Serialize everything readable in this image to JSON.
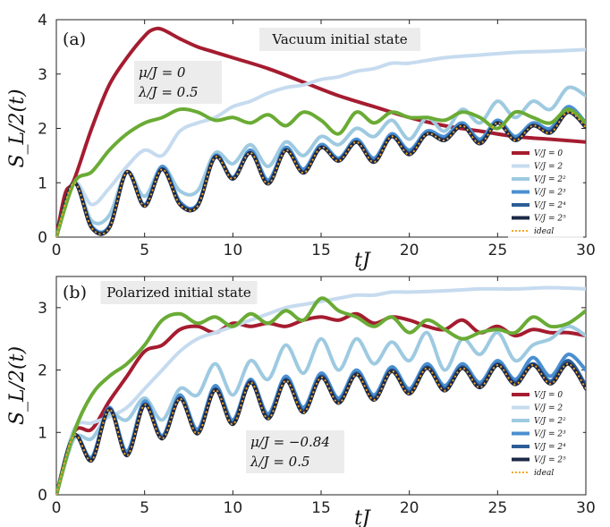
{
  "chart_data": [
    {
      "type": "line",
      "panel_label": "(a)",
      "title": "Vacuum initial state",
      "annotation": [
        "μ/J = 0",
        "λ/J = 0.5"
      ],
      "xlabel": "tJ",
      "ylabel": "S_L/2(t)",
      "xlim": [
        0,
        30
      ],
      "ylim": [
        0,
        4
      ],
      "xticks": [
        "0",
        "5",
        "10",
        "15",
        "20",
        "25",
        "30"
      ],
      "yticks": [
        "0",
        "1",
        "2",
        "3",
        "4"
      ],
      "legend_position": "bottom-right",
      "legend": [
        "V/J = 0",
        "V/J = 2",
        "V/J = 2²",
        "V/J = 2³",
        "V/J = 2⁴",
        "V/J = 2⁵",
        "ideal"
      ],
      "series": [
        {
          "name": "V/J = 0",
          "color": "#a51c30",
          "x": [
            0,
            0.5,
            1,
            2,
            3,
            4,
            5,
            5.5,
            6,
            7,
            8,
            9,
            10,
            12,
            14,
            16,
            18,
            20,
            22,
            24,
            26,
            28,
            30
          ],
          "y": [
            0,
            0.8,
            1.05,
            2.0,
            2.8,
            3.3,
            3.7,
            3.82,
            3.82,
            3.65,
            3.5,
            3.4,
            3.3,
            3.1,
            2.85,
            2.6,
            2.4,
            2.2,
            2.05,
            1.95,
            1.85,
            1.8,
            1.75
          ]
        },
        {
          "name": "V/J = 2",
          "color": "#c6dbef",
          "x": [
            0,
            1,
            2,
            3,
            4,
            5,
            6,
            7,
            8,
            9,
            10,
            11,
            12,
            13,
            14,
            15,
            16,
            17,
            18,
            19,
            20,
            22,
            24,
            26,
            28,
            30
          ],
          "y": [
            0,
            1.0,
            0.6,
            0.9,
            1.3,
            1.6,
            1.5,
            1.95,
            2.1,
            2.2,
            2.4,
            2.5,
            2.65,
            2.75,
            2.8,
            2.9,
            2.95,
            3.05,
            3.1,
            3.2,
            3.2,
            3.3,
            3.35,
            3.4,
            3.42,
            3.45
          ]
        },
        {
          "name": "V/J = 2²",
          "color": "#9ecae1",
          "x": [
            0,
            1,
            2,
            3,
            4,
            5,
            6,
            7,
            8,
            9,
            10,
            11,
            12,
            13,
            14,
            15,
            16,
            17,
            18,
            19,
            20,
            21,
            22,
            23,
            24,
            25,
            26,
            27,
            28,
            29,
            30
          ],
          "y": [
            0,
            1.0,
            0.3,
            0.4,
            1.2,
            0.75,
            1.3,
            0.85,
            0.85,
            1.55,
            1.35,
            1.7,
            1.3,
            1.75,
            1.5,
            1.85,
            1.7,
            2.0,
            1.85,
            2.15,
            1.8,
            2.2,
            1.95,
            2.35,
            2.1,
            2.5,
            2.2,
            2.5,
            2.35,
            2.75,
            2.6
          ]
        },
        {
          "name": "V/J = 2³",
          "color": "#4a8fd1",
          "x": [
            0,
            1,
            2,
            3,
            4,
            5,
            6,
            7,
            8,
            9,
            10,
            11,
            12,
            13,
            14,
            15,
            16,
            17,
            18,
            19,
            20,
            21,
            22,
            23,
            24,
            25,
            26,
            27,
            28,
            29,
            30
          ],
          "y": [
            0,
            1.0,
            0.2,
            0.2,
            1.2,
            0.6,
            1.3,
            0.65,
            0.6,
            1.5,
            1.1,
            1.6,
            1.05,
            1.65,
            1.25,
            1.7,
            1.45,
            1.8,
            1.45,
            1.9,
            1.6,
            1.95,
            1.85,
            2.1,
            1.8,
            2.15,
            1.85,
            2.1,
            2.0,
            2.4,
            2.1
          ]
        },
        {
          "name": "V/J = 2⁴",
          "color": "#2c5d97",
          "x": [
            0,
            1,
            2,
            3,
            4,
            5,
            6,
            7,
            8,
            9,
            10,
            11,
            12,
            13,
            14,
            15,
            16,
            17,
            18,
            19,
            20,
            21,
            22,
            23,
            24,
            25,
            26,
            27,
            28,
            29,
            30
          ],
          "y": [
            0,
            1.0,
            0.18,
            0.18,
            1.2,
            0.58,
            1.25,
            0.62,
            0.58,
            1.48,
            1.08,
            1.55,
            1.0,
            1.6,
            1.2,
            1.65,
            1.42,
            1.75,
            1.4,
            1.85,
            1.55,
            1.9,
            1.8,
            2.05,
            1.75,
            2.1,
            1.8,
            2.05,
            1.95,
            2.3,
            2.05
          ]
        },
        {
          "name": "V/J = 2⁵",
          "color": "#1c2846",
          "x": [
            0,
            1,
            2,
            3,
            4,
            5,
            6,
            7,
            8,
            9,
            10,
            11,
            12,
            13,
            14,
            15,
            16,
            17,
            18,
            19,
            20,
            21,
            22,
            23,
            24,
            25,
            26,
            27,
            28,
            29,
            30
          ],
          "y": [
            0,
            1.0,
            0.17,
            0.17,
            1.2,
            0.57,
            1.25,
            0.6,
            0.57,
            1.47,
            1.07,
            1.55,
            0.98,
            1.6,
            1.18,
            1.65,
            1.4,
            1.75,
            1.38,
            1.85,
            1.52,
            1.9,
            1.78,
            2.05,
            1.72,
            2.1,
            1.78,
            2.05,
            1.92,
            2.3,
            2.02
          ]
        },
        {
          "name": "ideal",
          "color": "#f5a623",
          "dashed": true,
          "x": [
            0,
            1,
            2,
            3,
            4,
            5,
            6,
            7,
            8,
            9,
            10,
            11,
            12,
            13,
            14,
            15,
            16,
            17,
            18,
            19,
            20,
            21,
            22,
            23,
            24,
            25,
            26,
            27,
            28,
            29,
            30
          ],
          "y": [
            0,
            1.0,
            0.17,
            0.17,
            1.2,
            0.57,
            1.25,
            0.6,
            0.57,
            1.47,
            1.07,
            1.55,
            0.98,
            1.6,
            1.18,
            1.65,
            1.4,
            1.75,
            1.38,
            1.85,
            1.52,
            1.9,
            1.78,
            2.05,
            1.72,
            2.1,
            1.78,
            2.05,
            1.92,
            2.3,
            2.02
          ]
        },
        {
          "name": "",
          "color": "#6aab35",
          "x": [
            0,
            1,
            2,
            3,
            4,
            5,
            6,
            7,
            8,
            9,
            10,
            11,
            12,
            13,
            14,
            15,
            16,
            17,
            18,
            19,
            20,
            21,
            22,
            23,
            24,
            25,
            26,
            27,
            28,
            29,
            30
          ],
          "y": [
            0,
            1.0,
            1.2,
            1.6,
            1.9,
            2.1,
            2.2,
            2.35,
            2.3,
            2.15,
            2.2,
            2.1,
            2.25,
            2.05,
            2.3,
            2.15,
            1.9,
            2.3,
            2.1,
            2.3,
            2.2,
            2.2,
            2.15,
            2.3,
            2.2,
            2.0,
            2.3,
            2.2,
            2.1,
            2.35,
            2.1
          ]
        }
      ]
    },
    {
      "type": "line",
      "panel_label": "(b)",
      "title": "Polarized initial state",
      "annotation": [
        "μ/J = −0.84",
        "λ/J = 0.5"
      ],
      "xlabel": "tJ",
      "ylabel": "S_L/2(t)",
      "xlim": [
        0,
        30
      ],
      "ylim": [
        0,
        3.5
      ],
      "xticks": [
        "0",
        "5",
        "10",
        "15",
        "20",
        "25",
        "30"
      ],
      "yticks": [
        "0",
        "1",
        "2",
        "3"
      ],
      "legend_position": "bottom-right",
      "legend": [
        "V/J = 0",
        "V/J = 2",
        "V/J = 2²",
        "V/J = 2³",
        "V/J = 2⁴",
        "V/J = 2⁵",
        "ideal"
      ],
      "series": [
        {
          "name": "V/J = 0",
          "color": "#a51c30",
          "x": [
            0,
            1,
            2,
            3,
            4,
            5,
            6,
            7,
            8,
            9,
            10,
            11,
            12,
            13,
            14,
            15,
            16,
            17,
            18,
            19,
            20,
            21,
            22,
            23,
            24,
            25,
            26,
            27,
            28,
            29,
            30
          ],
          "y": [
            0,
            1.0,
            1.05,
            1.5,
            1.9,
            2.3,
            2.4,
            2.65,
            2.7,
            2.6,
            2.75,
            2.7,
            2.75,
            2.7,
            2.8,
            2.85,
            2.8,
            2.9,
            2.75,
            2.85,
            2.8,
            2.7,
            2.65,
            2.8,
            2.6,
            2.7,
            2.55,
            2.65,
            2.6,
            2.6,
            2.55
          ]
        },
        {
          "name": "V/J = 2",
          "color": "#c6dbef",
          "x": [
            0,
            1,
            2,
            3,
            4,
            5,
            6,
            7,
            8,
            9,
            10,
            11,
            12,
            13,
            14,
            15,
            16,
            17,
            18,
            19,
            20,
            22,
            24,
            26,
            28,
            30
          ],
          "y": [
            0,
            1.05,
            1.15,
            1.25,
            1.4,
            1.7,
            2.0,
            2.3,
            2.5,
            2.6,
            2.7,
            2.8,
            2.9,
            3.0,
            3.05,
            3.1,
            3.15,
            3.2,
            3.2,
            3.25,
            3.25,
            3.27,
            3.3,
            3.3,
            3.32,
            3.3
          ]
        },
        {
          "name": "V/J = 2²",
          "color": "#9ecae1",
          "x": [
            0,
            1,
            2,
            3,
            4,
            5,
            6,
            7,
            8,
            9,
            10,
            11,
            12,
            13,
            14,
            15,
            16,
            17,
            18,
            19,
            20,
            21,
            22,
            23,
            24,
            25,
            26,
            27,
            28,
            29,
            30
          ],
          "y": [
            0,
            0.9,
            0.9,
            1.3,
            1.2,
            1.55,
            1.2,
            1.7,
            1.6,
            2.1,
            1.6,
            2.15,
            1.85,
            2.4,
            1.95,
            2.5,
            2.0,
            2.5,
            2.1,
            2.45,
            2.15,
            2.6,
            2.0,
            2.5,
            2.25,
            2.6,
            2.15,
            2.4,
            2.5,
            2.7,
            2.55
          ]
        },
        {
          "name": "V/J = 2³",
          "color": "#4a8fd1",
          "x": [
            0,
            1,
            2,
            3,
            4,
            5,
            6,
            7,
            8,
            9,
            10,
            11,
            12,
            13,
            14,
            15,
            16,
            17,
            18,
            19,
            20,
            21,
            22,
            23,
            24,
            25,
            26,
            27,
            28,
            29,
            30
          ],
          "y": [
            0,
            0.95,
            0.6,
            1.4,
            0.7,
            1.5,
            0.95,
            1.6,
            1.05,
            1.75,
            1.2,
            1.85,
            1.3,
            1.9,
            1.4,
            1.95,
            1.55,
            2.0,
            1.6,
            2.05,
            1.7,
            2.1,
            1.75,
            2.1,
            1.8,
            2.15,
            1.85,
            2.2,
            1.9,
            2.25,
            2.0
          ]
        },
        {
          "name": "V/J = 2⁴",
          "color": "#2c5d97",
          "x": [
            0,
            1,
            2,
            3,
            4,
            5,
            6,
            7,
            8,
            9,
            10,
            11,
            12,
            13,
            14,
            15,
            16,
            17,
            18,
            19,
            20,
            21,
            22,
            23,
            24,
            25,
            26,
            27,
            28,
            29,
            30
          ],
          "y": [
            0,
            0.95,
            0.57,
            1.38,
            0.65,
            1.45,
            0.92,
            1.55,
            1.0,
            1.7,
            1.15,
            1.82,
            1.25,
            1.85,
            1.35,
            1.9,
            1.5,
            1.95,
            1.55,
            2.0,
            1.65,
            2.05,
            1.7,
            2.05,
            1.75,
            2.1,
            1.8,
            2.1,
            1.82,
            2.15,
            1.75
          ]
        },
        {
          "name": "V/J = 2⁵",
          "color": "#1c2846",
          "x": [
            0,
            1,
            2,
            3,
            4,
            5,
            6,
            7,
            8,
            9,
            10,
            11,
            12,
            13,
            14,
            15,
            16,
            17,
            18,
            19,
            20,
            21,
            22,
            23,
            24,
            25,
            26,
            27,
            28,
            29,
            30
          ],
          "y": [
            0,
            0.95,
            0.55,
            1.37,
            0.63,
            1.44,
            0.9,
            1.54,
            0.98,
            1.68,
            1.13,
            1.8,
            1.22,
            1.83,
            1.32,
            1.88,
            1.47,
            1.93,
            1.52,
            1.98,
            1.62,
            2.03,
            1.67,
            2.03,
            1.72,
            2.08,
            1.77,
            2.08,
            1.78,
            2.1,
            1.7
          ]
        },
        {
          "name": "ideal",
          "color": "#f5a623",
          "dashed": true,
          "x": [
            0,
            1,
            2,
            3,
            4,
            5,
            6,
            7,
            8,
            9,
            10,
            11,
            12,
            13,
            14,
            15,
            16,
            17,
            18,
            19,
            20,
            21,
            22,
            23,
            24,
            25,
            26,
            27,
            28,
            29,
            30
          ],
          "y": [
            0,
            0.95,
            0.55,
            1.37,
            0.63,
            1.44,
            0.9,
            1.54,
            0.98,
            1.68,
            1.13,
            1.8,
            1.22,
            1.83,
            1.32,
            1.88,
            1.47,
            1.93,
            1.52,
            1.98,
            1.62,
            2.03,
            1.67,
            2.03,
            1.72,
            2.08,
            1.77,
            2.08,
            1.78,
            2.1,
            1.7
          ]
        },
        {
          "name": "",
          "color": "#6aab35",
          "x": [
            0,
            1,
            2,
            3,
            4,
            5,
            6,
            7,
            8,
            9,
            10,
            11,
            12,
            13,
            14,
            15,
            16,
            17,
            18,
            19,
            20,
            21,
            22,
            23,
            24,
            25,
            26,
            27,
            28,
            29,
            30
          ],
          "y": [
            0,
            1.0,
            1.6,
            1.9,
            2.1,
            2.4,
            2.8,
            2.9,
            2.75,
            2.85,
            2.7,
            2.9,
            2.75,
            2.95,
            2.8,
            3.15,
            2.95,
            2.85,
            2.7,
            2.85,
            2.6,
            2.8,
            2.65,
            2.5,
            2.6,
            2.65,
            2.6,
            2.85,
            2.7,
            2.75,
            2.95
          ]
        }
      ]
    }
  ]
}
